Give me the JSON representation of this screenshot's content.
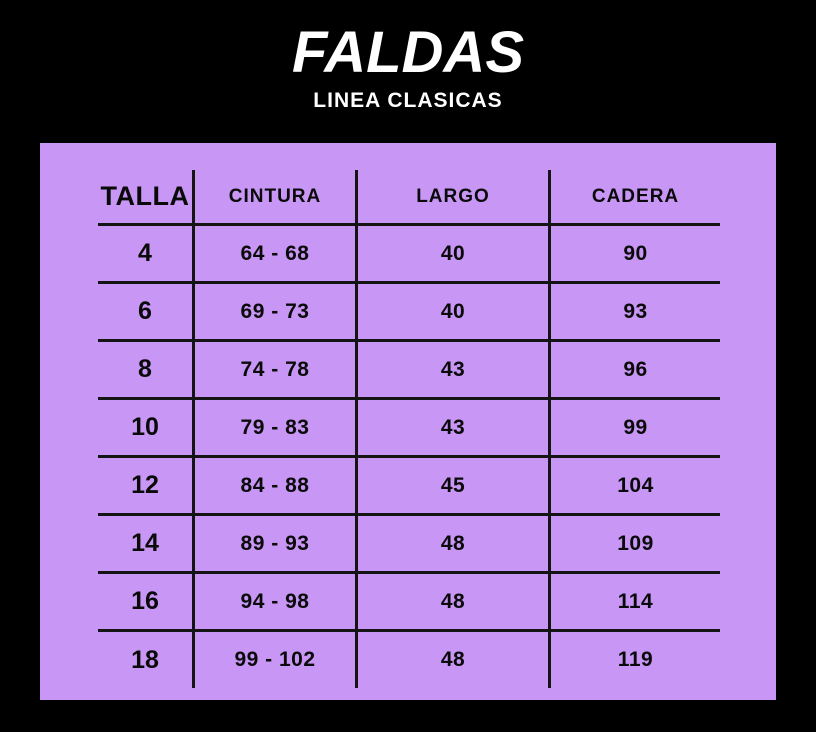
{
  "colors": {
    "page_background": "#000000",
    "panel_background": "#c896f4",
    "line": "#141414",
    "title_text": "#ffffff",
    "cell_text": "#0a0a0a"
  },
  "header": {
    "title": "FALDAS",
    "subtitle": "LINEA CLASICAS"
  },
  "table": {
    "columns": [
      "TALLA",
      "CINTURA",
      "LARGO",
      "CADERA"
    ],
    "rows": [
      [
        "4",
        "64 - 68",
        "40",
        "90"
      ],
      [
        "6",
        "69 - 73",
        "40",
        "93"
      ],
      [
        "8",
        "74 - 78",
        "43",
        "96"
      ],
      [
        "10",
        "79 - 83",
        "43",
        "99"
      ],
      [
        "12",
        "84 - 88",
        "45",
        "104"
      ],
      [
        "14",
        "89 - 93",
        "48",
        "109"
      ],
      [
        "16",
        "94 - 98",
        "48",
        "114"
      ],
      [
        "18",
        "99 - 102",
        "48",
        "119"
      ]
    ]
  },
  "chart_data": {
    "type": "table",
    "title": "FALDAS",
    "subtitle": "LINEA CLASICAS",
    "columns": [
      "TALLA",
      "CINTURA",
      "LARGO",
      "CADERA"
    ],
    "rows": [
      [
        "4",
        "64 - 68",
        "40",
        "90"
      ],
      [
        "6",
        "69 - 73",
        "40",
        "93"
      ],
      [
        "8",
        "74 - 78",
        "43",
        "96"
      ],
      [
        "10",
        "79 - 83",
        "43",
        "99"
      ],
      [
        "12",
        "84 - 88",
        "45",
        "104"
      ],
      [
        "14",
        "89 - 93",
        "48",
        "109"
      ],
      [
        "16",
        "94 - 98",
        "48",
        "114"
      ],
      [
        "18",
        "99 - 102",
        "48",
        "119"
      ]
    ]
  }
}
